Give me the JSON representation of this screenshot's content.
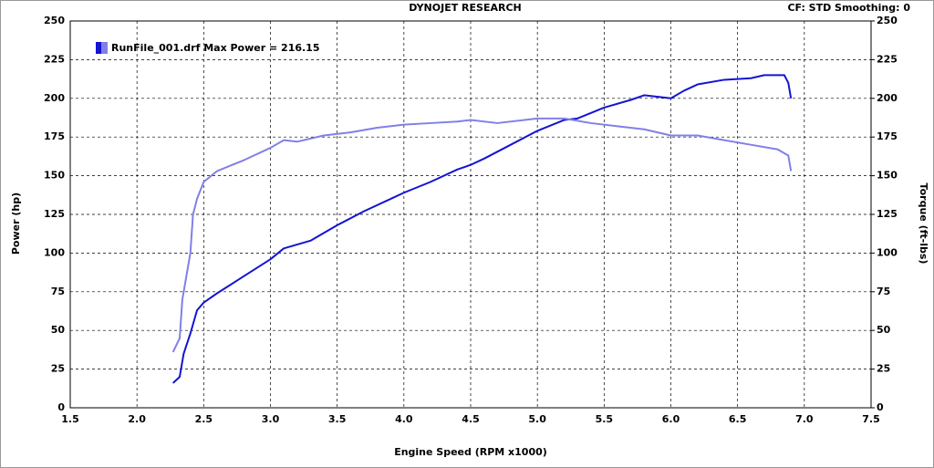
{
  "chart_data": {
    "type": "line",
    "title": "DYNOJET RESEARCH",
    "subtitle": "CF: STD  Smoothing: 0",
    "x_label": "Engine Speed (RPM x1000)",
    "y_label": "Power (hp)",
    "y2_label": "Torque (ft-lbs)",
    "legend": "RunFile_001.drf Max Power = 216.15",
    "xlim": [
      1.5,
      7.5
    ],
    "xticks": [
      {
        "value": 1.5,
        "label": "1.5"
      },
      {
        "value": 2,
        "label": "2.0"
      },
      {
        "value": 2.5,
        "label": "2.5"
      },
      {
        "value": 3,
        "label": "3.0"
      },
      {
        "value": 3.5,
        "label": "3.5"
      },
      {
        "value": 4,
        "label": "4.0"
      },
      {
        "value": 4.5,
        "label": "4.5"
      },
      {
        "value": 5,
        "label": "5.0"
      },
      {
        "value": 5.5,
        "label": "5.5"
      },
      {
        "value": 6,
        "label": "6.0"
      },
      {
        "value": 6.5,
        "label": "6.5"
      },
      {
        "value": 7,
        "label": "7.0"
      },
      {
        "value": 7.5,
        "label": "7.5"
      }
    ],
    "ylim": [
      0,
      250
    ],
    "yticks": [
      0,
      25,
      50,
      75,
      100,
      125,
      150,
      175,
      200,
      225,
      250
    ],
    "y2lim": [
      0,
      250
    ],
    "y2ticks": [
      0,
      25,
      50,
      75,
      100,
      125,
      150,
      175,
      200,
      225,
      250
    ],
    "grid": true,
    "series": [
      {
        "color": "#1414d2",
        "axis": "y",
        "x": [
          2.27,
          2.32,
          2.35,
          2.4,
          2.45,
          2.5,
          2.6,
          2.8,
          3.0,
          3.1,
          3.3,
          3.5,
          3.7,
          3.9,
          4.0,
          4.2,
          4.4,
          4.5,
          4.6,
          4.8,
          5.0,
          5.2,
          5.3,
          5.5,
          5.7,
          5.8,
          6.0,
          6.1,
          6.2,
          6.4,
          6.6,
          6.7,
          6.85,
          6.88,
          6.9
        ],
        "values": [
          16,
          20,
          35,
          48,
          63,
          68,
          74,
          85,
          96,
          103,
          108,
          118,
          127,
          135,
          139,
          146,
          154,
          157,
          161,
          170,
          179,
          186,
          187,
          194,
          199,
          202,
          200,
          205,
          209,
          212,
          213,
          215,
          215,
          210,
          200
        ]
      },
      {
        "color": "#8080e8",
        "axis": "y2",
        "x": [
          2.27,
          2.32,
          2.34,
          2.4,
          2.42,
          2.45,
          2.5,
          2.6,
          2.8,
          3.0,
          3.1,
          3.2,
          3.4,
          3.6,
          3.8,
          4.0,
          4.2,
          4.4,
          4.5,
          4.7,
          5.0,
          5.2,
          5.4,
          5.6,
          5.8,
          6.0,
          6.2,
          6.4,
          6.6,
          6.8,
          6.88,
          6.9
        ],
        "values": [
          36,
          45,
          70,
          100,
          125,
          135,
          146,
          153,
          160,
          168,
          173,
          172,
          176,
          178,
          181,
          183,
          184,
          185,
          186,
          184,
          187,
          187,
          184,
          182,
          180,
          176,
          176,
          173,
          170,
          167,
          163,
          153
        ]
      }
    ]
  }
}
